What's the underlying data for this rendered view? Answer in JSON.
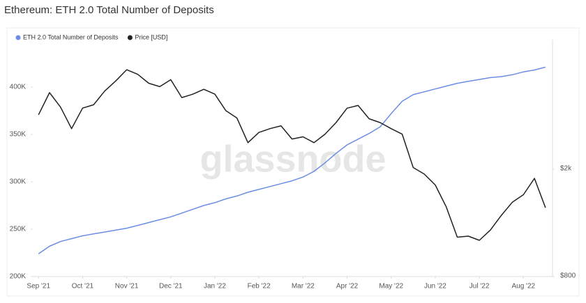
{
  "chart_data": {
    "type": "line",
    "title": "Ethereum: ETH 2.0 Total Number of Deposits",
    "watermark": "glassnode",
    "x": [
      0,
      0.25,
      0.5,
      0.75,
      1,
      1.25,
      1.5,
      1.75,
      2,
      2.25,
      2.5,
      2.75,
      3,
      3.25,
      3.5,
      3.75,
      4,
      4.25,
      4.5,
      4.75,
      5,
      5.25,
      5.5,
      5.75,
      6,
      6.25,
      6.5,
      6.75,
      7,
      7.25,
      7.5,
      7.75,
      8,
      8.25,
      8.5,
      8.75,
      9,
      9.25,
      9.5,
      9.75,
      10,
      10.25,
      10.5,
      10.75,
      11,
      11.25,
      11.5
    ],
    "xlim": [
      -0.13,
      11.66
    ],
    "xticks": [
      {
        "value": 0,
        "label": "Sep '21"
      },
      {
        "value": 1,
        "label": "Oct '21"
      },
      {
        "value": 2,
        "label": "Nov '21"
      },
      {
        "value": 3,
        "label": "Dec '21"
      },
      {
        "value": 4,
        "label": "Jan '22"
      },
      {
        "value": 5,
        "label": "Feb '22"
      },
      {
        "value": 6,
        "label": "Mar '22"
      },
      {
        "value": 7,
        "label": "Apr '22"
      },
      {
        "value": 8,
        "label": "May '22"
      },
      {
        "value": 9,
        "label": "Jun '22"
      },
      {
        "value": 10,
        "label": "Jul '22"
      },
      {
        "value": 11,
        "label": "Aug '22"
      }
    ],
    "ylim": [
      200000,
      450000
    ],
    "yticks": [
      {
        "value": 200000,
        "label": "200K"
      },
      {
        "value": 250000,
        "label": "250K"
      },
      {
        "value": 300000,
        "label": "300K"
      },
      {
        "value": 350000,
        "label": "350K"
      },
      {
        "value": 400000,
        "label": "400K"
      }
    ],
    "y2lim": [
      800,
      6050
    ],
    "y2_log_scale": true,
    "y2ticks": [
      {
        "value": 800,
        "label": "$800"
      },
      {
        "value": 2000,
        "label": "$2k"
      }
    ],
    "series": [
      {
        "name": "ETH 2.0 Total Number of Deposits",
        "color": "#6b8de3",
        "axis": "y",
        "values": [
          224000,
          232000,
          237000,
          240000,
          243000,
          245000,
          247000,
          249000,
          251000,
          254000,
          257000,
          260000,
          263000,
          267000,
          271000,
          275000,
          278000,
          282000,
          285000,
          289000,
          292000,
          295000,
          298000,
          301000,
          305000,
          311000,
          320000,
          330000,
          339000,
          345000,
          351000,
          358000,
          372000,
          385000,
          392000,
          395000,
          398000,
          401000,
          404000,
          406000,
          408000,
          410000,
          411000,
          413000,
          416000,
          418000,
          421000
        ]
      },
      {
        "name": "Price [USD]",
        "color": "#222222",
        "axis": "y2",
        "values": [
          3185,
          3850,
          3400,
          2830,
          3373,
          3470,
          3900,
          4250,
          4680,
          4500,
          4170,
          4050,
          4300,
          3690,
          3800,
          3960,
          3800,
          3300,
          3100,
          2510,
          2740,
          2830,
          2900,
          2590,
          2640,
          2510,
          2700,
          2980,
          3370,
          3450,
          3080,
          2980,
          2830,
          2700,
          2030,
          1920,
          1750,
          1450,
          1120,
          1130,
          1090,
          1190,
          1350,
          1510,
          1610,
          1850,
          1440
        ]
      }
    ]
  }
}
